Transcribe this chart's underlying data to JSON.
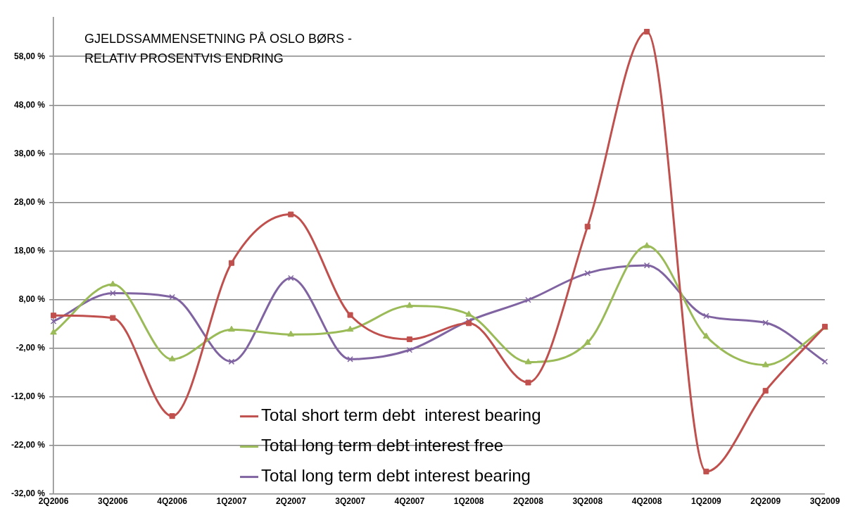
{
  "chart_data": {
    "type": "line",
    "title": "GJELDSSAMMENSETNING PÅ OSLO BØRS -\nRELATIV PROSENTVIS ENDRING",
    "categories": [
      "2Q2006",
      "3Q2006",
      "4Q2006",
      "1Q2007",
      "2Q2007",
      "3Q2007",
      "4Q2007",
      "1Q2008",
      "2Q2008",
      "3Q2008",
      "4Q2008",
      "1Q2009",
      "2Q2009",
      "3Q2009"
    ],
    "series": [
      {
        "name": "Total short term debt  interest bearing",
        "color": "#c0504d",
        "marker": "square",
        "values": [
          4.7,
          4.2,
          -16.0,
          15.5,
          25.5,
          4.8,
          -0.2,
          3.1,
          -9.1,
          23.0,
          63.1,
          -27.4,
          -10.8,
          2.4
        ]
      },
      {
        "name": "Total long term debt interest free",
        "color": "#9bbb59",
        "marker": "triangle",
        "values": [
          1.2,
          11.1,
          -4.3,
          1.8,
          0.8,
          1.8,
          6.7,
          4.9,
          -4.9,
          -0.9,
          19.0,
          0.4,
          -5.5,
          2.2
        ]
      },
      {
        "name": "Total long term debt interest bearing",
        "color": "#8064a2",
        "marker": "cross",
        "values": [
          3.5,
          9.3,
          8.5,
          -4.8,
          12.4,
          -4.3,
          -2.4,
          3.6,
          7.9,
          13.4,
          15.0,
          4.6,
          3.2,
          -4.8
        ]
      }
    ],
    "ylim": [
      -32,
      66
    ],
    "yticks": [
      {
        "value": -32,
        "label": "-32,00 %"
      },
      {
        "value": -22,
        "label": "-22,00 %"
      },
      {
        "value": -12,
        "label": "-12,00 %"
      },
      {
        "value": -2,
        "label": "-2,00 %"
      },
      {
        "value": 8,
        "label": "8,00 %"
      },
      {
        "value": 18,
        "label": "18,00 %"
      },
      {
        "value": 28,
        "label": "28,00 %"
      },
      {
        "value": 38,
        "label": "38,00 %"
      },
      {
        "value": 48,
        "label": "48,00 %"
      },
      {
        "value": 58,
        "label": "58,00 %"
      }
    ],
    "grid": "y",
    "legend": "bottom"
  }
}
